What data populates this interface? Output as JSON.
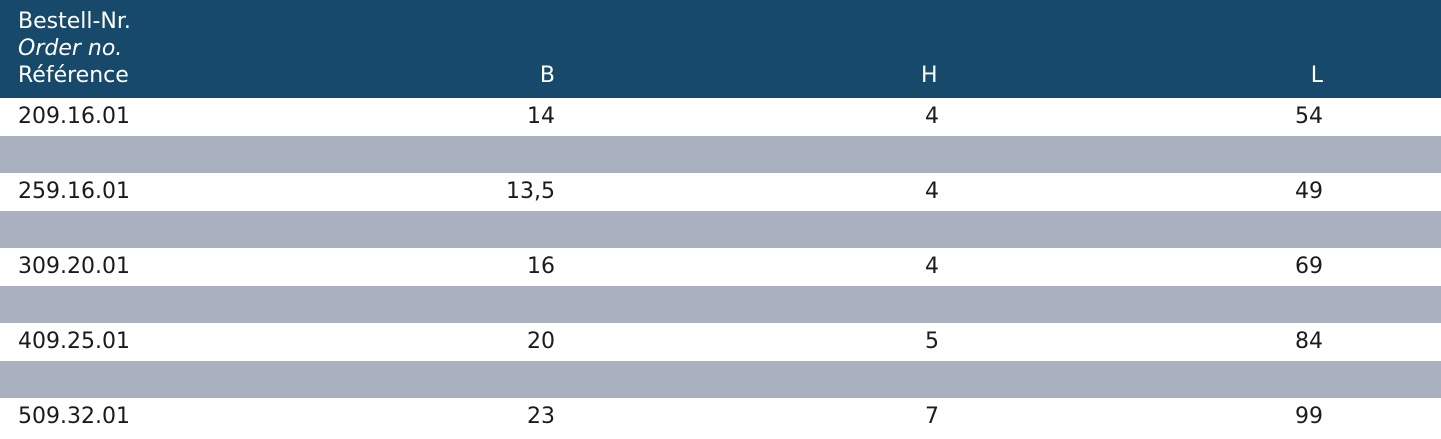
{
  "header": {
    "ref_de": "Bestell-Nr.",
    "ref_en": "Order no.",
    "ref_fr": "Référence",
    "col_b": "B",
    "col_h": "H",
    "col_l": "L"
  },
  "rows": [
    {
      "ref": "209.16.01",
      "b": "14",
      "h": "4",
      "l": "54"
    },
    {
      "ref": "259.16.01",
      "b": "13,5",
      "h": "4",
      "l": "49"
    },
    {
      "ref": "309.20.01",
      "b": "16",
      "h": "4",
      "l": "69"
    },
    {
      "ref": "409.25.01",
      "b": "20",
      "h": "5",
      "l": "84"
    },
    {
      "ref": "509.32.01",
      "b": "23",
      "h": "7",
      "l": "99"
    }
  ],
  "colors": {
    "header_bg": "#174a6a",
    "stripe_bg": "#a9b0bf"
  }
}
